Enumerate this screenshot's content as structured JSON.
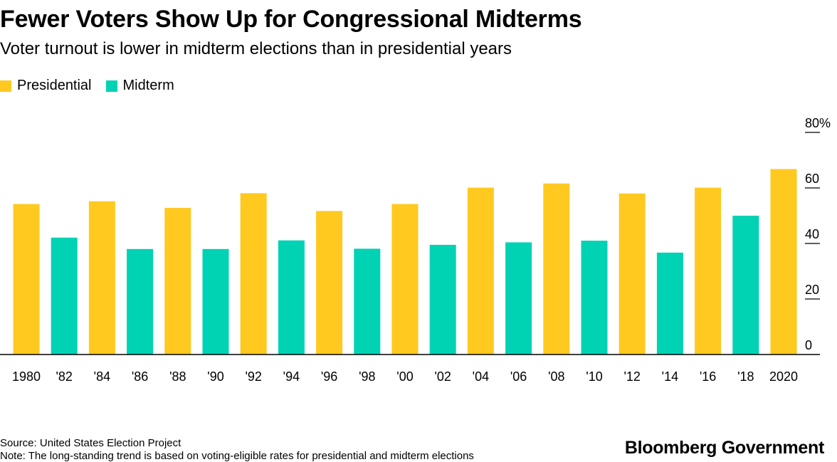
{
  "title": "Fewer Voters Show Up for Congressional Midterms",
  "subtitle": "Voter turnout is lower in midterm elections than in presidential years",
  "legend": {
    "presidential": "Presidential",
    "midterm": "Midterm"
  },
  "colors": {
    "presidential": "#FFC91F",
    "midterm": "#00D2B4",
    "axis": "#000000"
  },
  "chart_data": {
    "type": "bar",
    "categories": [
      "1980",
      "'82",
      "'84",
      "'86",
      "'88",
      "'90",
      "'92",
      "'94",
      "'96",
      "'98",
      "'00",
      "'02",
      "'04",
      "'06",
      "'08",
      "'10",
      "'12",
      "'14",
      "'16",
      "'18",
      "2020"
    ],
    "kinds": [
      "presidential",
      "midterm",
      "presidential",
      "midterm",
      "presidential",
      "midterm",
      "presidential",
      "midterm",
      "presidential",
      "midterm",
      "presidential",
      "midterm",
      "presidential",
      "midterm",
      "presidential",
      "midterm",
      "presidential",
      "midterm",
      "presidential",
      "midterm",
      "presidential"
    ],
    "values": [
      54.2,
      42.1,
      55.2,
      38.0,
      52.8,
      38.0,
      58.1,
      41.1,
      51.7,
      38.1,
      54.2,
      39.5,
      60.1,
      40.4,
      61.6,
      41.0,
      58.0,
      36.7,
      60.1,
      50.0,
      66.8
    ],
    "series": [
      {
        "name": "Presidential"
      },
      {
        "name": "Midterm"
      }
    ],
    "ylim": [
      0,
      80
    ],
    "yticks": [
      0,
      20,
      40,
      60,
      80
    ],
    "ytick_labels": [
      "0",
      "20",
      "40",
      "60",
      "80%"
    ],
    "axis_position": "right",
    "legend_position": "top-left",
    "grid": false
  },
  "footer": {
    "source": "Source: United States Election Project",
    "note": "Note: The long-standing trend is based on voting-eligible rates for presidential and midterm elections"
  },
  "brand": "Bloomberg Government"
}
